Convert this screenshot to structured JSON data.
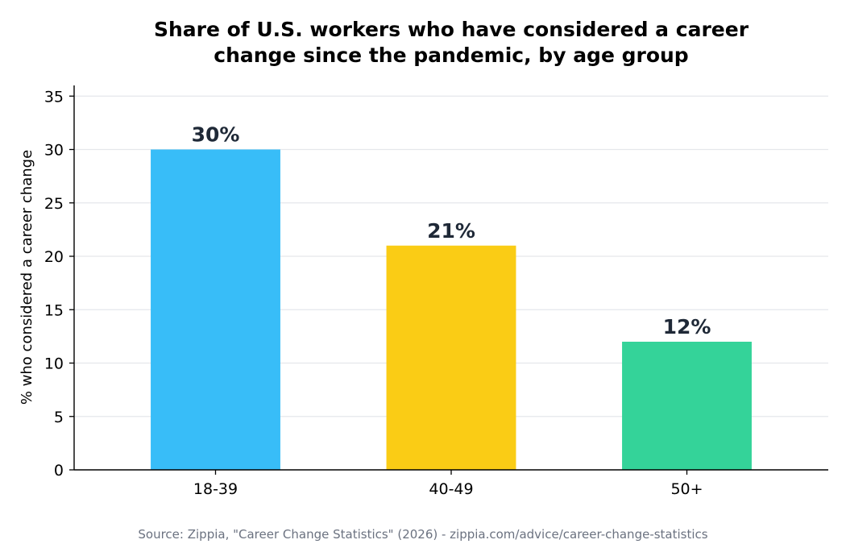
{
  "chart_data": {
    "type": "bar",
    "title": "Share of U.S. workers who have considered a career change since the pandemic, by age group",
    "title_lines": [
      "Share of U.S. workers who have considered a career",
      "change since the pandemic, by age group"
    ],
    "xlabel": "",
    "ylabel": "% who considered a career change",
    "categories": [
      "18-39",
      "40-49",
      "50+"
    ],
    "values": [
      30,
      21,
      12
    ],
    "data_labels": [
      "30%",
      "21%",
      "12%"
    ],
    "colors": [
      "#38bdf8",
      "#facc15",
      "#34d399"
    ],
    "ylim": [
      0,
      36
    ],
    "yticks": [
      0,
      5,
      10,
      15,
      20,
      25,
      30,
      35
    ],
    "grid": true,
    "grid_axis": "y",
    "legend": "none",
    "source": "Source: Zippia, \"Career Change Statistics\" (2026) - zippia.com/advice/career-change-statistics"
  }
}
